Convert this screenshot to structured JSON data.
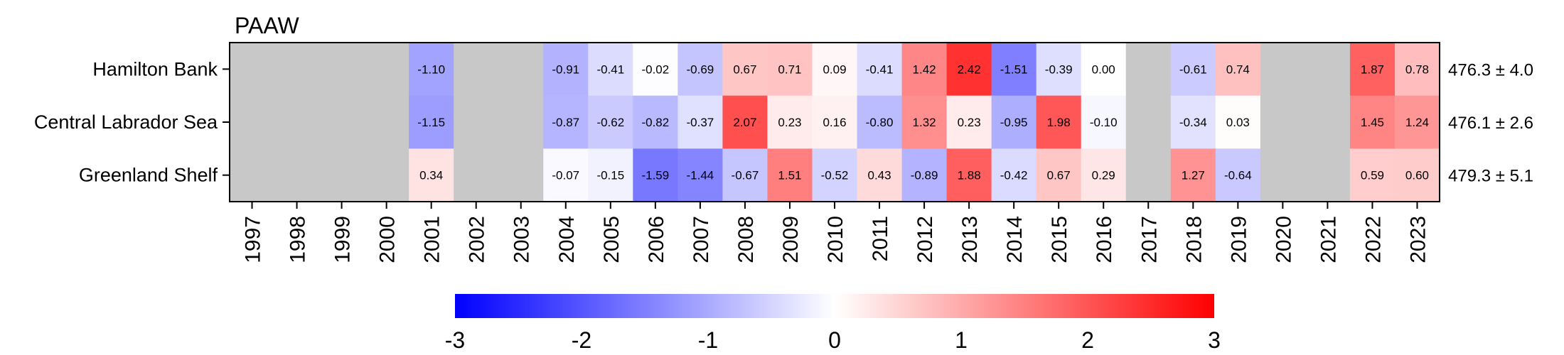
{
  "chart_data": {
    "type": "heatmap",
    "title": "PAAW",
    "xlabel": "",
    "ylabel": "",
    "years": [
      "1997",
      "1998",
      "1999",
      "2000",
      "2001",
      "2002",
      "2003",
      "2004",
      "2005",
      "2006",
      "2007",
      "2008",
      "2009",
      "2010",
      "2011",
      "2012",
      "2013",
      "2014",
      "2015",
      "2016",
      "2017",
      "2018",
      "2019",
      "2020",
      "2021",
      "2022",
      "2023"
    ],
    "rows": [
      {
        "name": "Hamilton Bank",
        "right_label": "476.3 ± 4.0",
        "values": [
          null,
          null,
          null,
          null,
          -1.1,
          null,
          null,
          -0.91,
          -0.41,
          -0.02,
          -0.69,
          0.67,
          0.71,
          0.09,
          -0.41,
          1.42,
          2.42,
          -1.51,
          -0.39,
          -0.0,
          null,
          -0.61,
          0.74,
          null,
          null,
          1.87,
          0.78
        ]
      },
      {
        "name": "Central Labrador Sea",
        "right_label": "476.1 ± 2.6",
        "values": [
          null,
          null,
          null,
          null,
          -1.15,
          null,
          null,
          -0.87,
          -0.62,
          -0.82,
          -0.37,
          2.07,
          0.23,
          0.16,
          -0.8,
          1.32,
          0.23,
          -0.95,
          1.98,
          -0.1,
          null,
          -0.34,
          0.03,
          null,
          null,
          1.45,
          1.24
        ]
      },
      {
        "name": "Greenland Shelf",
        "right_label": "479.3 ± 5.1",
        "values": [
          null,
          null,
          null,
          null,
          0.34,
          null,
          null,
          -0.07,
          -0.15,
          -1.59,
          -1.44,
          -0.67,
          1.51,
          -0.52,
          0.43,
          -0.89,
          1.88,
          -0.42,
          0.67,
          0.29,
          null,
          1.27,
          -0.64,
          null,
          null,
          0.59,
          0.6
        ]
      }
    ],
    "colorbar": {
      "min": -3,
      "max": 3,
      "ticks": [
        "-3",
        "-2",
        "-1",
        "0",
        "1",
        "2",
        "3"
      ],
      "low_color": "#0000ff",
      "mid_color": "#ffffff",
      "high_color": "#ff0000"
    },
    "missing_color": "#c8c8c8"
  }
}
